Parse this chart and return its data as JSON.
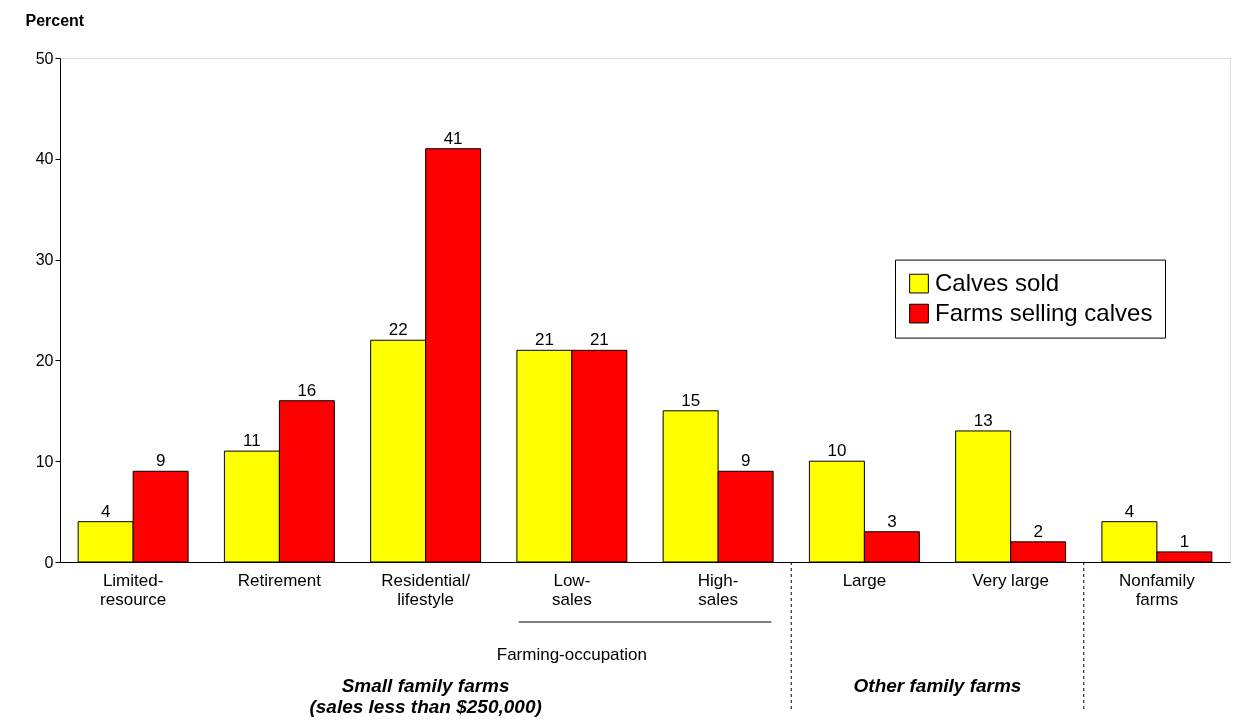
{
  "chart_data": {
    "type": "bar",
    "ylabel": "Percent",
    "categories": [
      "Limited-\nresource",
      "Retirement",
      "Residential/\nlifestyle",
      "Low-\nsales",
      "High-\nsales",
      "Large",
      "Very large",
      "Nonfamily\nfarms"
    ],
    "series": [
      {
        "name": "Calves sold",
        "color": "#ffff00",
        "values": [
          4,
          11,
          22,
          21,
          15,
          10,
          13,
          4
        ]
      },
      {
        "name": "Farms selling calves",
        "color": "#ff0000",
        "values": [
          9,
          16,
          41,
          21,
          9,
          3,
          2,
          1
        ]
      }
    ],
    "ylim": [
      0,
      50
    ],
    "yticks": [
      0,
      10,
      20,
      30,
      40,
      50
    ],
    "grid": false,
    "legend": "right",
    "data_labels": true,
    "annotations": [
      "Farming-occupation",
      "Small family farms\n(sales less than $250,000)",
      "Other family farms"
    ]
  }
}
